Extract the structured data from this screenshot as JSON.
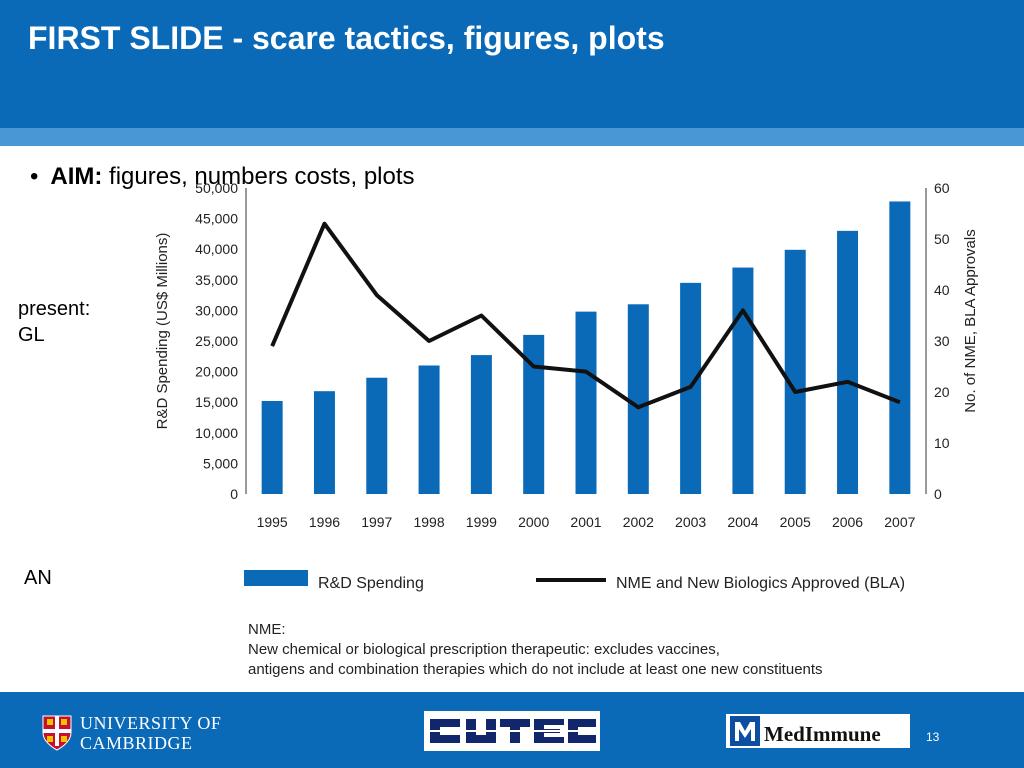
{
  "slide": {
    "title": "FIRST SLIDE - scare tactics, figures, plots",
    "bullet_label": "AIM:",
    "bullet_text": " figures, numbers costs, plots",
    "side_present": "present:",
    "side_gl": "GL",
    "side_an": "AN",
    "page_number": "13"
  },
  "chart_data": {
    "type": "bar",
    "categories": [
      "1995",
      "1996",
      "1997",
      "1998",
      "1999",
      "2000",
      "2001",
      "2002",
      "2003",
      "2004",
      "2005",
      "2006",
      "2007"
    ],
    "series": [
      {
        "name": "R&D Spending",
        "type": "bar",
        "axis": "left",
        "values": [
          15200,
          16800,
          19000,
          21000,
          22700,
          26000,
          29800,
          31000,
          34500,
          37000,
          39900,
          43000,
          47800
        ]
      },
      {
        "name": "NME and New Biologics Approved (BLA)",
        "type": "line",
        "axis": "right",
        "values": [
          29,
          53,
          39,
          30,
          35,
          25,
          24,
          17,
          21,
          36,
          20,
          22,
          18
        ]
      }
    ],
    "ylabel_left": "R&D Spending (US$ Millions)",
    "ylabel_right": "No. of NME, BLA Approvals",
    "ylim_left": [
      0,
      50000
    ],
    "ylim_right": [
      0,
      60
    ],
    "yticks_left": [
      "0",
      "5,000",
      "10,000",
      "15,000",
      "20,000",
      "25,000",
      "30,000",
      "35,000",
      "40,000",
      "45,000",
      "50,000"
    ],
    "yticks_right": [
      "0",
      "10",
      "20",
      "30",
      "40",
      "50",
      "60"
    ],
    "colors": {
      "bar": "#0b6ab8",
      "line": "#111111"
    },
    "grid": false,
    "legend": "bottom",
    "note_title": "NME:",
    "note_line1": "New chemical or biological prescription therapeutic: excludes vaccines,",
    "note_line2": "antigens and combination therapies which do not include at least one new constituents"
  },
  "logos": {
    "cambridge_line1": "UNIVERSITY OF",
    "cambridge_line2": "CAMBRIDGE",
    "medimmune": "MedImmune"
  }
}
